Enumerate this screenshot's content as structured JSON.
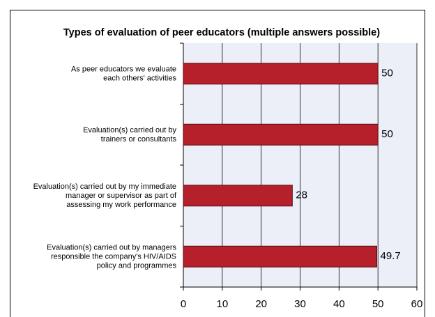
{
  "chart_data": {
    "type": "bar",
    "orientation": "horizontal",
    "title": "Types of evaluation of peer educators (multiple answers possible)",
    "categories": [
      "As peer educators we evaluate\neach others' activities",
      "Evaluation(s) carried out by\ntrainers or consultants",
      "Evaluation(s) carried out by my immediate\nmanager or supervisor as part of\nassessing my work performance",
      "Evaluation(s) carried out by managers\nresponsible the company's HIV/AIDS\npolicy and programmes"
    ],
    "values": [
      50,
      50,
      28,
      49.7
    ],
    "color": "#b5202a",
    "xlim": [
      0,
      60
    ],
    "xticks": [
      0,
      10,
      20,
      30,
      40,
      50,
      60
    ],
    "grid": true
  }
}
